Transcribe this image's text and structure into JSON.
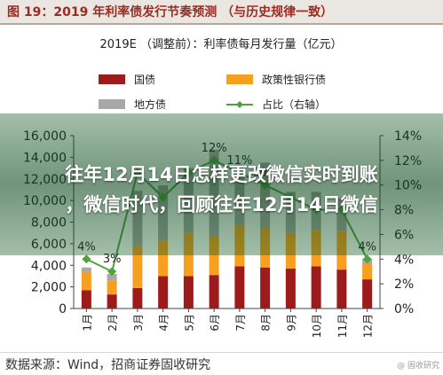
{
  "header": {
    "title": "图 19：2019 年利率债发行节奏预测 （与历史规律一致）"
  },
  "overlay": {
    "line1": "往年12月14日怎样更改微信实时到账",
    "line2": "，微信时代，回顾往年12月14日微信"
  },
  "footer": {
    "source": "数据来源：Wind，招商证券固收研究",
    "watermark": "@ 固收研究"
  },
  "chart_data": {
    "type": "bar",
    "title": "2019E （调整前）：利率债每月发行量（亿元）",
    "stacked": true,
    "categories": [
      "1月",
      "2月",
      "3月",
      "4月",
      "5月",
      "6月",
      "7月",
      "8月",
      "9月",
      "10月",
      "11月",
      "12月"
    ],
    "series": [
      {
        "name": "国债",
        "color": "#9e1b1b",
        "values": [
          1700,
          1300,
          1900,
          3000,
          3000,
          3100,
          3900,
          3800,
          3700,
          3900,
          3600,
          2700
        ]
      },
      {
        "name": "政策性银行债",
        "color": "#f7a020",
        "values": [
          1700,
          1300,
          3900,
          3300,
          4000,
          3600,
          3800,
          3700,
          3300,
          3400,
          3600,
          1400
        ]
      },
      {
        "name": "地方债",
        "color": "#a8a8a8",
        "values": [
          400,
          600,
          5100,
          5100,
          6000,
          8000,
          5600,
          6000,
          3800,
          3500,
          3000,
          500
        ]
      }
    ],
    "line_series": {
      "name": "占比（右轴）",
      "color": "#4fa33e",
      "values": [
        4,
        3,
        11,
        9,
        11,
        12,
        11,
        10,
        9,
        8,
        8,
        4
      ]
    },
    "line_labels": [
      {
        "index": 0,
        "text": "4%"
      },
      {
        "index": 1,
        "text": "3%"
      },
      {
        "index": 5,
        "text": "12%"
      },
      {
        "index": 6,
        "text": "11%"
      },
      {
        "index": 7,
        "text": "10%"
      },
      {
        "index": 11,
        "text": "4%"
      }
    ],
    "left_axis": {
      "min": 0,
      "max": 16000,
      "ticks": [
        "0",
        "2,000",
        "4,000",
        "6,000",
        "8,000",
        "10,000",
        "12,000",
        "14,000",
        "16,000"
      ]
    },
    "right_axis": {
      "min": 0,
      "max": 14,
      "ticks": [
        "0%",
        "2%",
        "4%",
        "6%",
        "8%",
        "10%",
        "12%",
        "14%"
      ]
    },
    "legend": {
      "position": "top"
    },
    "grid": false
  }
}
